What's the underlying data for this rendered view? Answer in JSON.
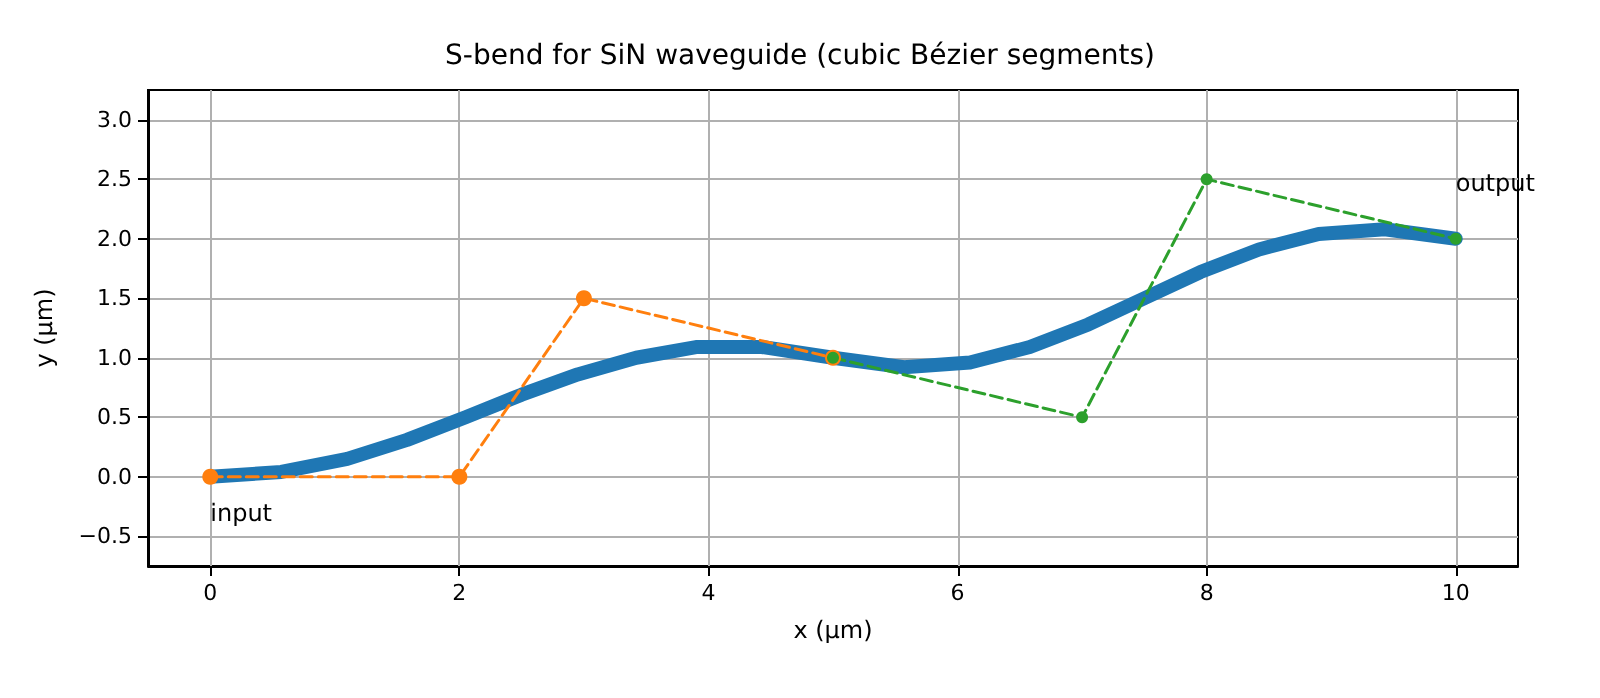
{
  "chart_data": {
    "type": "line",
    "title": "S-bend for SiN waveguide (cubic Bézier segments)",
    "xlabel": "x (µm)",
    "ylabel": "y (µm)",
    "series": [
      {
        "color": "#1f77b4",
        "line_style": "solid",
        "marker": "none",
        "x": [
          0,
          0.57,
          1.1,
          1.58,
          2.05,
          2.5,
          2.95,
          3.42,
          3.9,
          4.43,
          5,
          5.57,
          6.1,
          6.58,
          7.05,
          7.5,
          7.95,
          8.42,
          8.9,
          9.43,
          10
        ],
        "values": [
          0,
          0.04,
          0.15,
          0.31,
          0.5,
          0.69,
          0.86,
          1,
          1.09,
          1.09,
          1,
          0.92,
          0.96,
          1.09,
          1.28,
          1.5,
          1.72,
          1.91,
          2.04,
          2.08,
          2
        ]
      },
      {
        "color": "#ff7f0e",
        "line_style": "dashed",
        "marker": "circle",
        "x": [
          0,
          2,
          3,
          5
        ],
        "values": [
          0,
          0,
          1.5,
          1
        ]
      },
      {
        "color": "#2ca02c",
        "line_style": "dashed",
        "marker": "circle",
        "x": [
          5,
          7,
          8,
          10
        ],
        "values": [
          1,
          0.5,
          2.5,
          2
        ]
      }
    ],
    "xlim": [
      -0.5,
      10.5
    ],
    "xticks": [
      0,
      2,
      4,
      6,
      8,
      10
    ],
    "ylim": [
      -0.75,
      3.25
    ],
    "yticks": [
      {
        "value": -0.5,
        "label": "−0.5"
      },
      {
        "value": 0,
        "label": "0.0"
      },
      {
        "value": 0.5,
        "label": "0.5"
      },
      {
        "value": 1,
        "label": "1.0"
      },
      {
        "value": 1.5,
        "label": "1.5"
      },
      {
        "value": 2,
        "label": "2.0"
      },
      {
        "value": 2.5,
        "label": "2.5"
      },
      {
        "value": 3,
        "label": "3.0"
      }
    ],
    "grid": true,
    "annotations": [
      {
        "text": "input",
        "x": 0,
        "y": 0
      },
      {
        "text": "output",
        "x": 10,
        "y": 2
      }
    ]
  }
}
